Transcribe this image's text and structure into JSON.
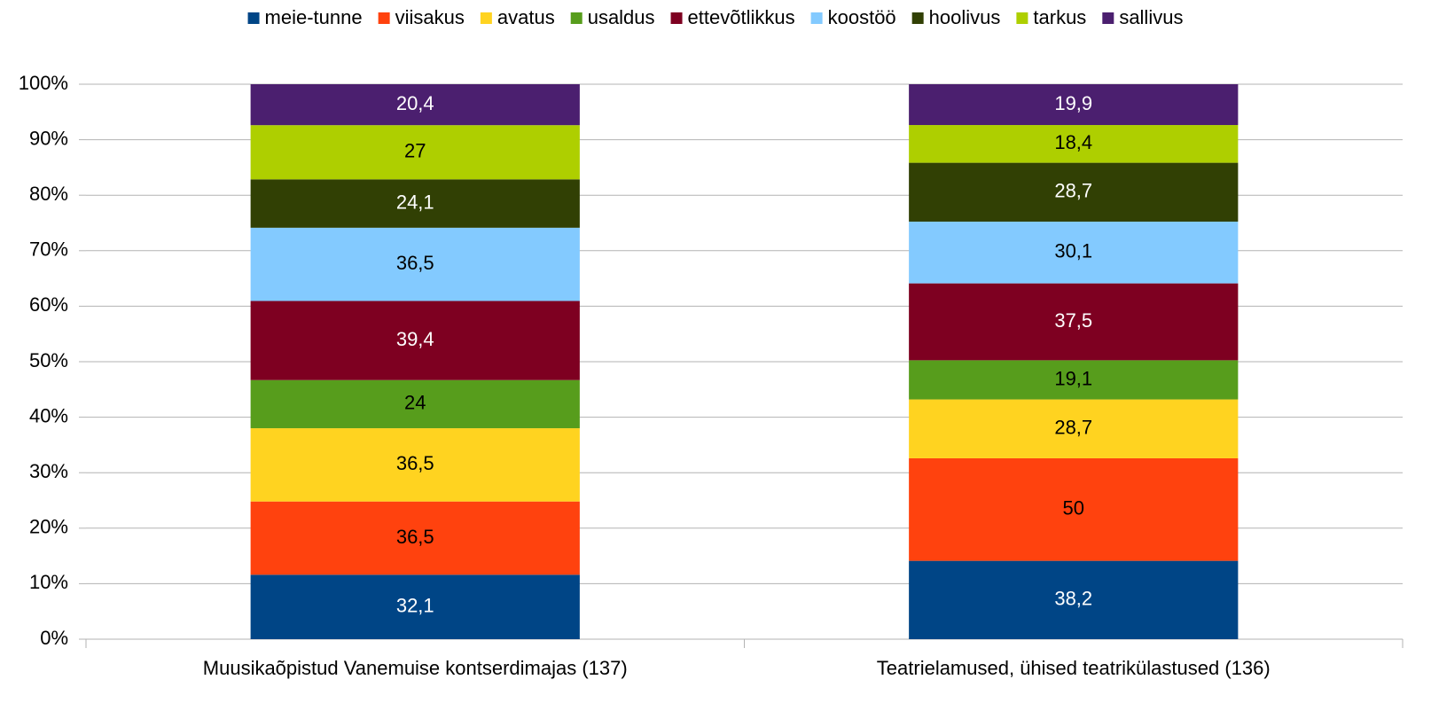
{
  "chart_data": {
    "type": "bar",
    "stacked": "percent",
    "grid": true,
    "legend": "top",
    "categories": [
      "Muusikaõpistud Vanemuise kontserdimajas (137)",
      "Teatrielamused, ühised teatrikülastused (136)"
    ],
    "series": [
      {
        "name": "meie-tunne",
        "color": "#004586",
        "values": [
          32.1,
          38.2
        ],
        "value_labels": [
          "32,1",
          "38,2"
        ]
      },
      {
        "name": "viisakus",
        "color": "#ff420e",
        "values": [
          36.5,
          50
        ],
        "value_labels": [
          "36,5",
          "50"
        ]
      },
      {
        "name": "avatus",
        "color": "#ffd320",
        "values": [
          36.5,
          28.7
        ],
        "value_labels": [
          "36,5",
          "28,7"
        ]
      },
      {
        "name": "usaldus",
        "color": "#579d1c",
        "values": [
          24,
          19.1
        ],
        "value_labels": [
          "24",
          "19,1"
        ]
      },
      {
        "name": "ettevõtlikkus",
        "color": "#7e0021",
        "values": [
          39.4,
          37.5
        ],
        "value_labels": [
          "39,4",
          "37,5"
        ]
      },
      {
        "name": "koostöö",
        "color": "#83caff",
        "values": [
          36.5,
          30.1
        ],
        "value_labels": [
          "36,5",
          "30,1"
        ]
      },
      {
        "name": "hoolivus",
        "color": "#314004",
        "values": [
          24.1,
          28.7
        ],
        "value_labels": [
          "24,1",
          "28,7"
        ]
      },
      {
        "name": "tarkus",
        "color": "#aecf00",
        "values": [
          27,
          18.4
        ],
        "value_labels": [
          "27",
          "18,4"
        ]
      },
      {
        "name": "sallivus",
        "color": "#4b1f6f",
        "values": [
          20.4,
          19.9
        ],
        "value_labels": [
          "20,4",
          "19,9"
        ]
      }
    ],
    "ylim": [
      0,
      100
    ],
    "yticks": [
      {
        "value": 0,
        "label": "0%"
      },
      {
        "value": 10,
        "label": "10%"
      },
      {
        "value": 20,
        "label": "20%"
      },
      {
        "value": 30,
        "label": "30%"
      },
      {
        "value": 40,
        "label": "40%"
      },
      {
        "value": 50,
        "label": "50%"
      },
      {
        "value": 60,
        "label": "60%"
      },
      {
        "value": 70,
        "label": "70%"
      },
      {
        "value": 80,
        "label": "80%"
      },
      {
        "value": 90,
        "label": "90%"
      },
      {
        "value": 100,
        "label": "100%"
      }
    ]
  }
}
